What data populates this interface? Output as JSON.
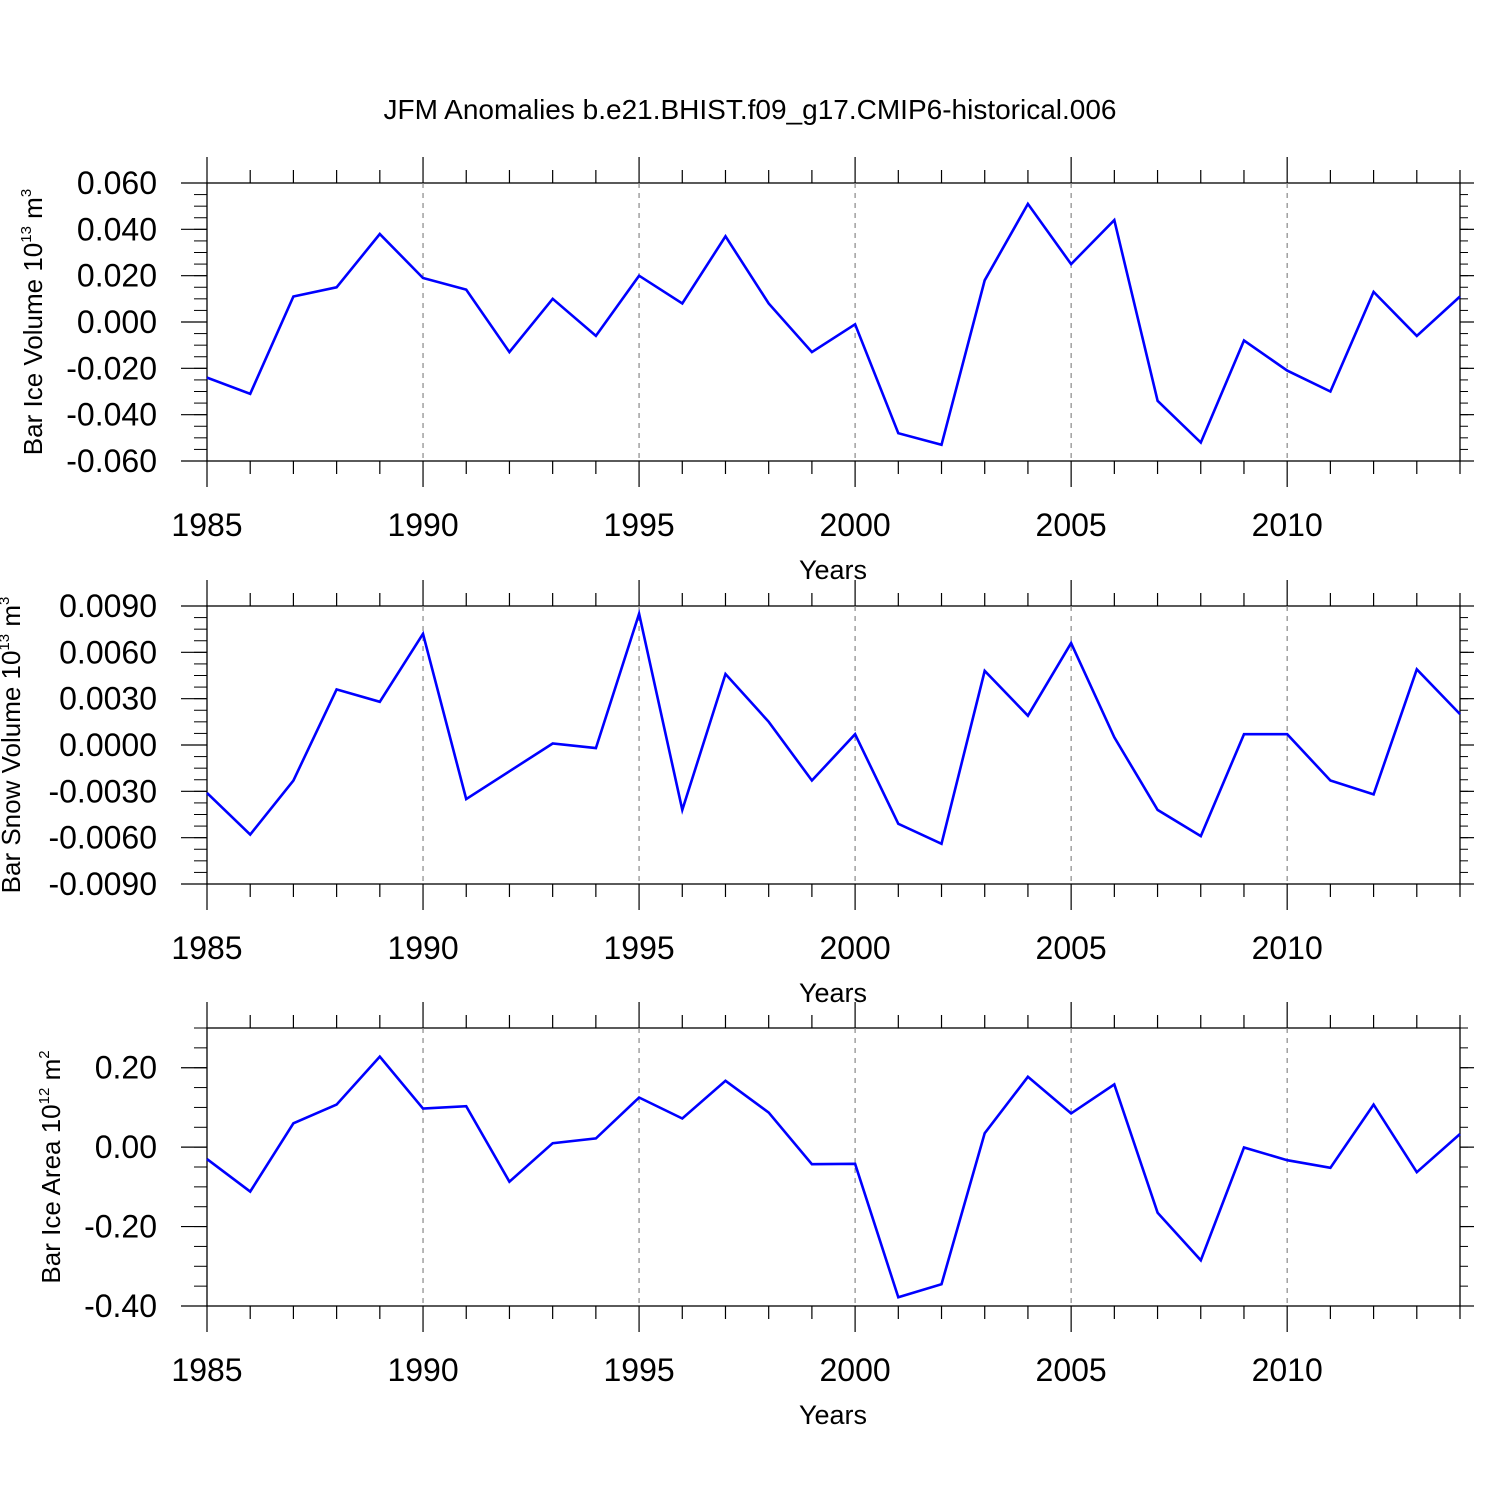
{
  "chart_data": {
    "title": "JFM Anomalies b.e21.BHIST.f09_g17.CMIP6-historical.006",
    "panels": [
      {
        "type": "line",
        "ylabel": {
          "text": "Bar Ice Volume 10",
          "exp": "13",
          "unit": " m",
          "unit_exp": "3"
        },
        "xlabel": "Years",
        "xlim": [
          1985,
          2014
        ],
        "ylim": [
          -0.06,
          0.06
        ],
        "yticks": [
          -0.06,
          -0.04,
          -0.02,
          0.0,
          0.02,
          0.04,
          0.06
        ],
        "ytick_labels": [
          "-0.060",
          "-0.040",
          "-0.020",
          "0.000",
          "0.020",
          "0.040",
          "0.060"
        ],
        "series": [
          {
            "name": "Bar Ice Volume",
            "color": "#0000ff",
            "x": [
              1985,
              1986,
              1987,
              1988,
              1989,
              1990,
              1991,
              1992,
              1993,
              1994,
              1995,
              1996,
              1997,
              1998,
              1999,
              2000,
              2001,
              2002,
              2003,
              2004,
              2005,
              2006,
              2007,
              2008,
              2009,
              2010,
              2011,
              2012,
              2013,
              2014
            ],
            "values": [
              -0.024,
              -0.031,
              0.011,
              0.015,
              0.038,
              0.019,
              0.014,
              -0.013,
              0.01,
              -0.006,
              0.02,
              0.008,
              0.037,
              0.008,
              -0.013,
              -0.001,
              -0.048,
              -0.053,
              0.018,
              0.051,
              0.025,
              0.044,
              -0.034,
              -0.052,
              -0.008,
              -0.021,
              -0.03,
              0.013,
              -0.006,
              0.011
            ]
          }
        ]
      },
      {
        "type": "line",
        "ylabel": {
          "text": "Bar Snow Volume 10",
          "exp": "13",
          "unit": " m",
          "unit_exp": "3"
        },
        "xlabel": "Years",
        "xlim": [
          1985,
          2014
        ],
        "ylim": [
          -0.009,
          0.009
        ],
        "yticks": [
          -0.009,
          -0.006,
          -0.003,
          0.0,
          0.003,
          0.006,
          0.009
        ],
        "ytick_labels": [
          "-0.0090",
          "-0.0060",
          "-0.0030",
          "0.0000",
          "0.0030",
          "0.0060",
          "0.0090"
        ],
        "series": [
          {
            "name": "Bar Snow Volume",
            "color": "#0000ff",
            "x": [
              1985,
              1986,
              1987,
              1988,
              1989,
              1990,
              1991,
              1992,
              1993,
              1994,
              1995,
              1996,
              1997,
              1998,
              1999,
              2000,
              2001,
              2002,
              2003,
              2004,
              2005,
              2006,
              2007,
              2008,
              2009,
              2010,
              2011,
              2012,
              2013,
              2014
            ],
            "values": [
              -0.0031,
              -0.0058,
              -0.0023,
              0.0036,
              0.0028,
              0.0072,
              -0.0035,
              -0.0017,
              0.0001,
              -0.0002,
              0.0085,
              -0.0042,
              0.0046,
              0.0015,
              -0.0023,
              0.0007,
              -0.0051,
              -0.0064,
              0.0048,
              0.0019,
              0.0066,
              0.0005,
              -0.0042,
              -0.0059,
              0.0007,
              0.0007,
              -0.0023,
              -0.0032,
              0.0049,
              0.002
            ]
          }
        ]
      },
      {
        "type": "line",
        "ylabel": {
          "text": "Bar Ice Area 10",
          "exp": "12",
          "unit": " m",
          "unit_exp": "2"
        },
        "xlabel": "Years",
        "xlim": [
          1985,
          2014
        ],
        "ylim": [
          -0.4,
          0.3
        ],
        "yticks": [
          -0.4,
          -0.2,
          0.0,
          0.2
        ],
        "ytick_labels": [
          "-0.40",
          "-0.20",
          "0.00",
          "0.20"
        ],
        "series": [
          {
            "name": "Bar Ice Area",
            "color": "#0000ff",
            "x": [
              1985,
              1986,
              1987,
              1988,
              1989,
              1990,
              1991,
              1992,
              1993,
              1994,
              1995,
              1996,
              1997,
              1998,
              1999,
              2000,
              2001,
              2002,
              2003,
              2004,
              2005,
              2006,
              2007,
              2008,
              2009,
              2010,
              2011,
              2012,
              2013,
              2014
            ],
            "values": [
              -0.03,
              -0.112,
              0.06,
              0.107,
              0.228,
              0.097,
              0.103,
              -0.087,
              0.01,
              0.022,
              0.125,
              0.072,
              0.167,
              0.087,
              -0.043,
              -0.042,
              -0.378,
              -0.345,
              0.035,
              0.177,
              0.085,
              0.158,
              -0.165,
              -0.285,
              -0.001,
              -0.033,
              -0.052,
              0.107,
              -0.063,
              0.033
            ]
          }
        ]
      }
    ],
    "xticks": [
      1985,
      1990,
      1995,
      2000,
      2005,
      2010
    ],
    "xtick_labels": [
      "1985",
      "1990",
      "1995",
      "2000",
      "2005",
      "2010"
    ],
    "reference_lines": [
      1990,
      1995,
      2000,
      2005,
      2010
    ]
  }
}
